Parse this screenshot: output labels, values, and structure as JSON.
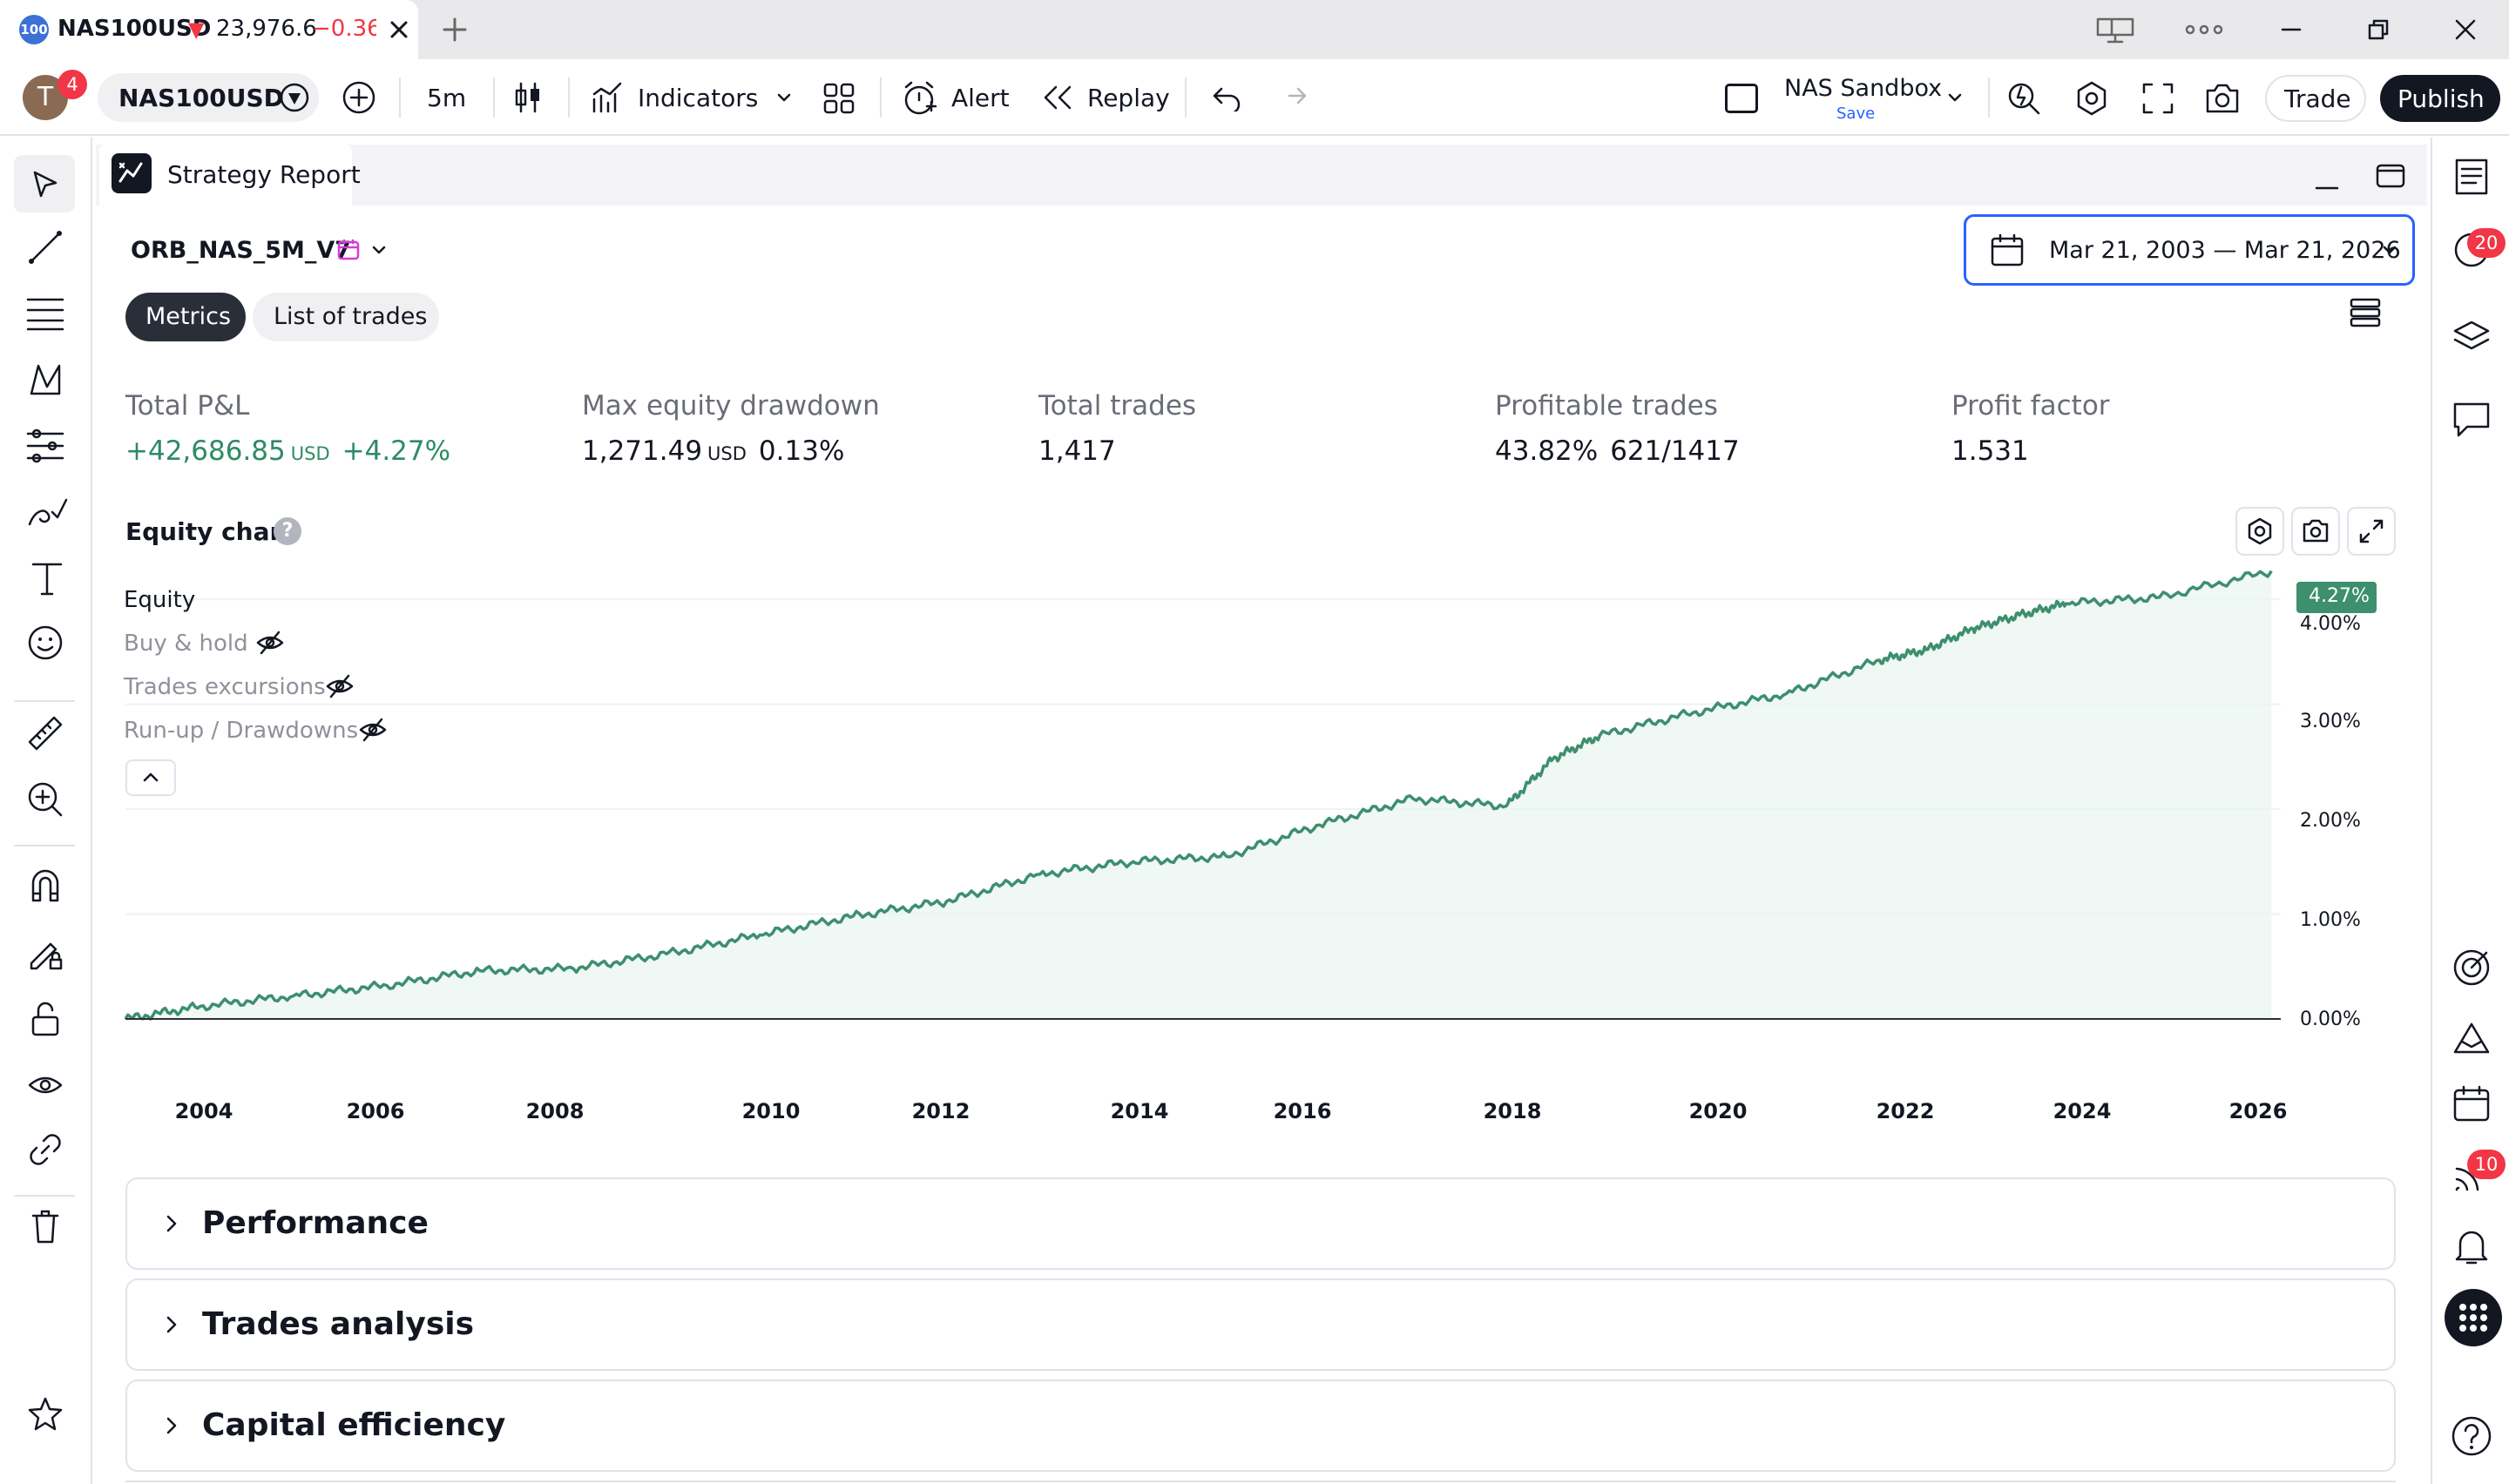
{
  "tab": {
    "logo": "100",
    "symbol": "NAS100USD",
    "price": "23,976.6",
    "change": "−0.36%",
    "direction_arrow": "▼",
    "close_icon": "close-icon",
    "new_tab_icon": "plus-icon"
  },
  "toolbar": {
    "avatar_letter": "T",
    "avatar_badge": "4",
    "symbol": "NAS100USD",
    "interval": "5m",
    "indicators_label": "Indicators",
    "alert_label": "Alert",
    "replay_label": "Replay",
    "layout_name": "NAS Sandbox",
    "layout_save": "Save",
    "trade_label": "Trade",
    "publish_label": "Publish"
  },
  "panel": {
    "title": "Strategy Report",
    "strategy_name": "ORB_NAS_5M_V7",
    "date_range": "Mar 21, 2003 — Mar 21, 2026",
    "tabs": [
      {
        "label": "Metrics",
        "active": true
      },
      {
        "label": "List of trades",
        "active": false
      }
    ]
  },
  "metrics": {
    "total_pl": {
      "label": "Total P&L",
      "value": "+42,686.85",
      "unit": "USD",
      "pct": "+4.27%"
    },
    "max_dd": {
      "label": "Max equity drawdown",
      "value": "1,271.49",
      "unit": "USD",
      "pct": "0.13%"
    },
    "total_trades": {
      "label": "Total trades",
      "value": "1,417"
    },
    "profitable": {
      "label": "Profitable trades",
      "pct": "43.82%",
      "ratio": "621/1417"
    },
    "profit_factor": {
      "label": "Profit factor",
      "value": "1.531"
    }
  },
  "equity_chart": {
    "title": "Equity chart",
    "help_icon": "question-icon",
    "legend": [
      {
        "label": "Equity",
        "visible": true
      },
      {
        "label": "Buy & hold",
        "visible": false
      },
      {
        "label": "Trades excursions",
        "visible": false
      },
      {
        "label": "Run-up / Drawdowns",
        "visible": false
      }
    ],
    "last_value_label": "4.27%"
  },
  "chart_data": {
    "type": "area",
    "series": [
      {
        "name": "Equity",
        "color": "#3d8f6e",
        "x": [
          2003.2,
          2004,
          2005,
          2006,
          2007,
          2008,
          2009,
          2010,
          2011,
          2012,
          2013,
          2014,
          2015,
          2016,
          2017,
          2018,
          2018.5,
          2019,
          2020,
          2021,
          2022,
          2022.5,
          2023,
          2023.5,
          2024,
          2025,
          2026.2
        ],
        "values": [
          0.0,
          0.12,
          0.22,
          0.32,
          0.46,
          0.48,
          0.62,
          0.8,
          0.98,
          1.12,
          1.38,
          1.5,
          1.55,
          1.85,
          2.1,
          2.03,
          2.48,
          2.7,
          2.92,
          3.1,
          3.42,
          3.52,
          3.72,
          3.85,
          3.96,
          4.02,
          4.27
        ]
      }
    ],
    "xticks": [
      "2004",
      "2006",
      "2008",
      "2010",
      "2012",
      "2014",
      "2016",
      "2018",
      "2020",
      "2022",
      "2024",
      "2026"
    ],
    "yticks": [
      "0.00%",
      "1.00%",
      "2.00%",
      "3.00%",
      "4.00%"
    ],
    "ylim": [
      0,
      4.4
    ],
    "xlim": [
      2003.2,
      2026.3
    ],
    "ylabel": "",
    "xlabel": "",
    "grid": true
  },
  "sections": [
    {
      "title": "Performance"
    },
    {
      "title": "Trades analysis"
    },
    {
      "title": "Capital efficiency"
    }
  ],
  "right_bar": {
    "alerts_badge": "20",
    "notifications_badge": "10"
  },
  "colors": {
    "accent_green": "#2e8b65",
    "negative_red": "#f23645",
    "date_border": "#2962ff",
    "primary_dark": "#131722"
  }
}
